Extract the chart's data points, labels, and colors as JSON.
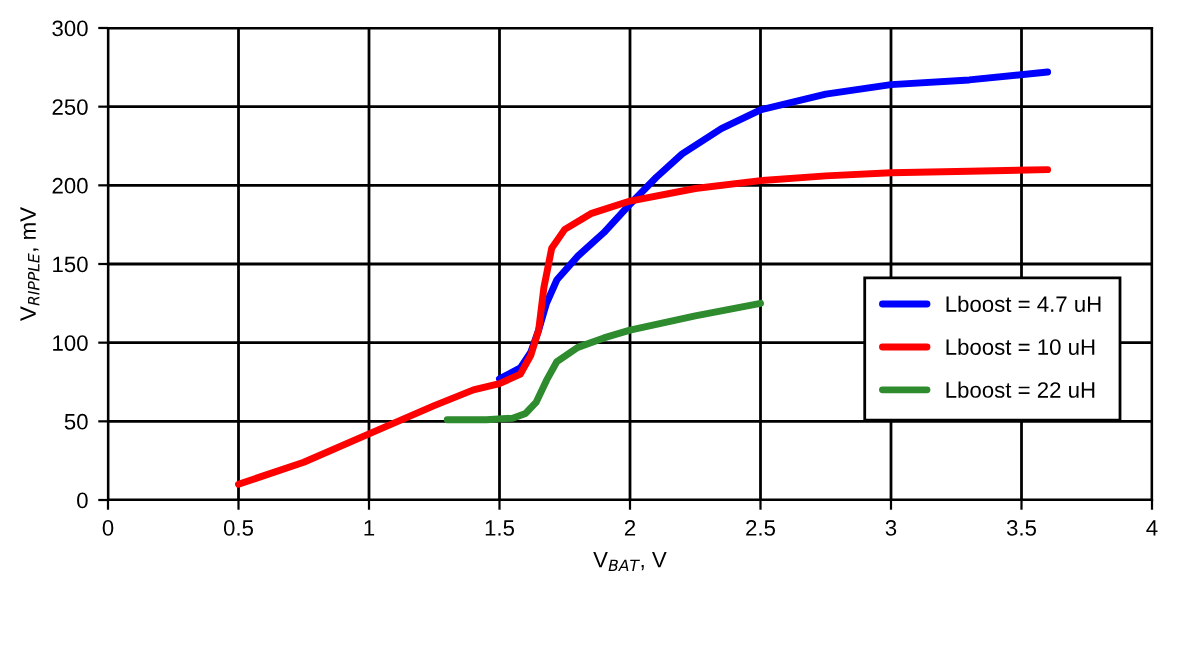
{
  "chart_data": {
    "type": "line",
    "xlabel": "V$_{BAT}$, V",
    "ylabel": "V$_{RIPPLE}$, mV",
    "xlim": [
      0,
      4
    ],
    "ylim": [
      0,
      300
    ],
    "xticks": [
      0,
      0.5,
      1,
      1.5,
      2,
      2.5,
      3,
      3.5,
      4
    ],
    "yticks": [
      0,
      50,
      100,
      150,
      200,
      250,
      300
    ],
    "grid": true,
    "legend": "right",
    "line_style": "solid",
    "marker": "none",
    "series": [
      {
        "name": "Lboost = 4.7 uH",
        "color": "#0000ff",
        "x": [
          1.5,
          1.58,
          1.62,
          1.65,
          1.68,
          1.72,
          1.8,
          1.9,
          2.0,
          2.1,
          2.2,
          2.35,
          2.5,
          2.75,
          3.0,
          3.3,
          3.6
        ],
        "values": [
          77,
          84,
          94,
          108,
          125,
          140,
          155,
          170,
          188,
          205,
          220,
          236,
          248,
          258,
          264,
          267,
          272
        ]
      },
      {
        "name": "Lboost = 10 uH",
        "color": "#ff0000",
        "x": [
          0.5,
          0.75,
          1.0,
          1.25,
          1.4,
          1.5,
          1.58,
          1.62,
          1.65,
          1.67,
          1.7,
          1.75,
          1.85,
          2.0,
          2.25,
          2.5,
          2.75,
          3.0,
          3.3,
          3.6
        ],
        "values": [
          10,
          24,
          42,
          60,
          70,
          74,
          80,
          92,
          108,
          135,
          160,
          172,
          182,
          190,
          198,
          203,
          206,
          208,
          209,
          210
        ]
      },
      {
        "name": "Lboost = 22 uH",
        "color": "#2e8b2e",
        "x": [
          1.3,
          1.45,
          1.55,
          1.6,
          1.64,
          1.68,
          1.72,
          1.8,
          1.9,
          2.0,
          2.25,
          2.5
        ],
        "values": [
          51,
          51,
          52,
          55,
          62,
          76,
          88,
          97,
          103,
          108,
          117,
          125
        ]
      }
    ]
  }
}
